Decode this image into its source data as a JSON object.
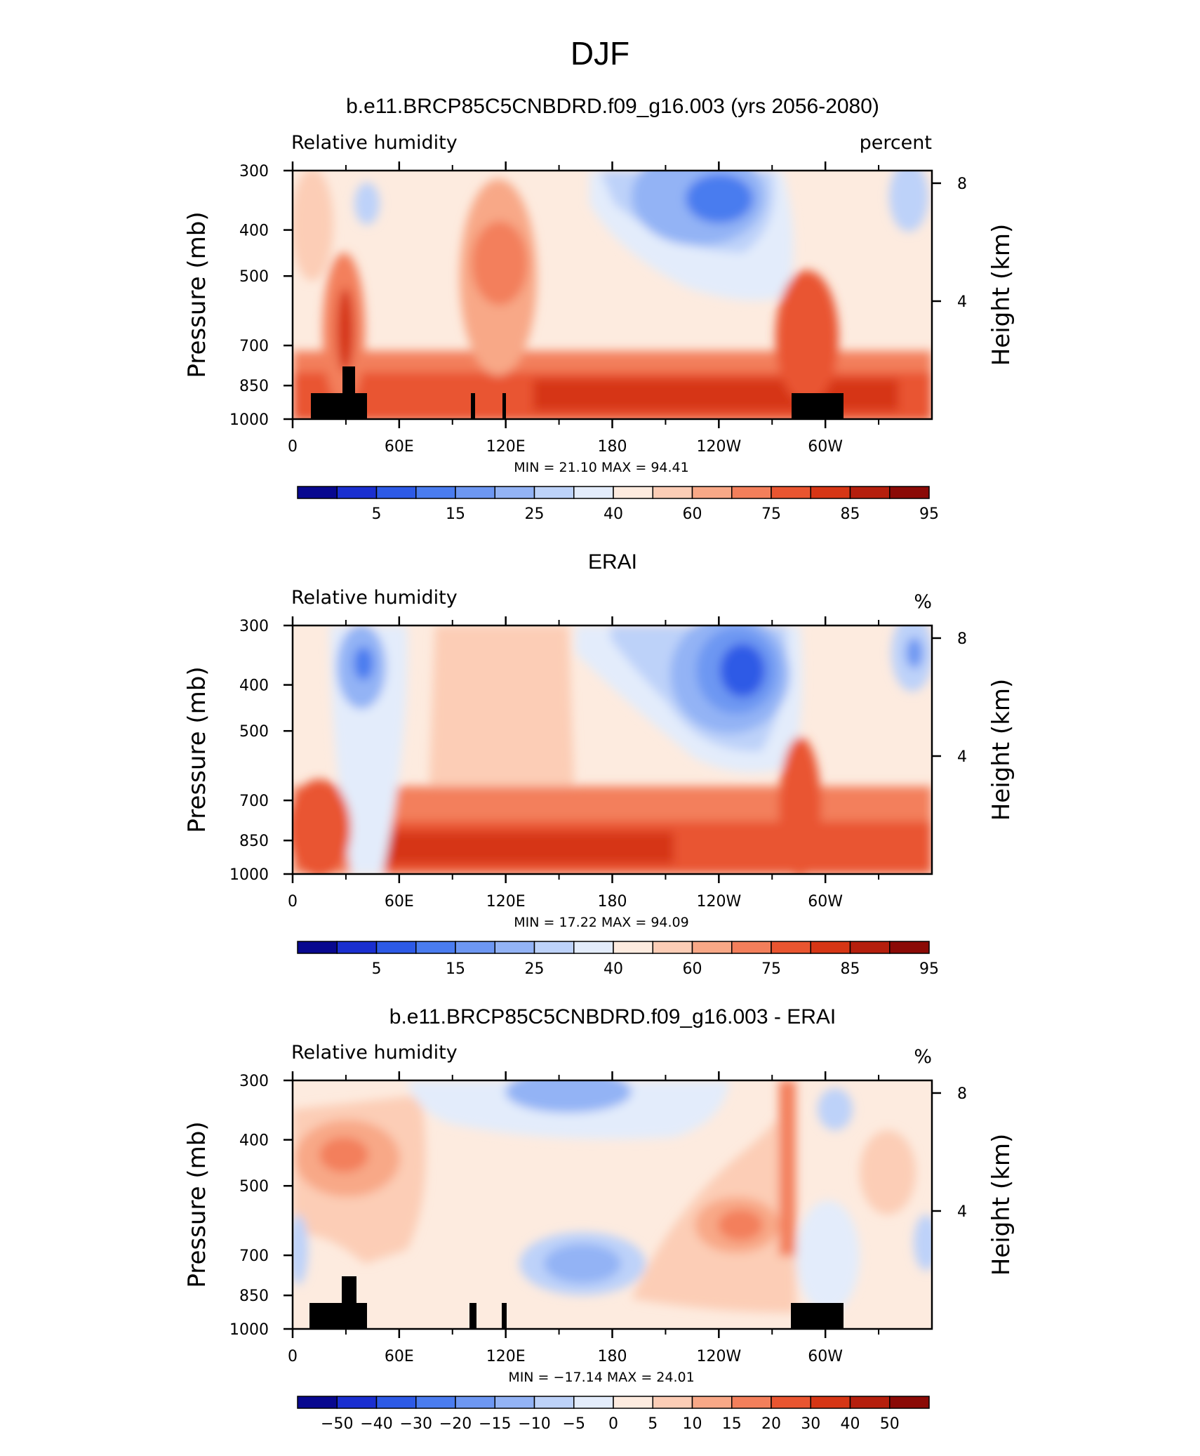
{
  "figure": {
    "title": "DJF"
  },
  "chart_data": [
    {
      "type": "heatmap",
      "title": "b.e11.BRCP85C5CNBDRD.f09_g16.003 (yrs 2056-2080)",
      "left_label": "Relative humidity",
      "right_label": "percent",
      "ylabel": "Pressure (mb)",
      "ylabel_right": "Height (km)",
      "x_ticks": [
        "0",
        "60E",
        "120E",
        "180",
        "120W",
        "60W"
      ],
      "x_tick_lon": [
        0,
        60,
        120,
        180,
        240,
        300
      ],
      "xlim": [
        0,
        360
      ],
      "y_ticks": [
        "300",
        "400",
        "500",
        "700",
        "850",
        "1000"
      ],
      "y_tick_p": [
        300,
        400,
        500,
        700,
        850,
        1000
      ],
      "ylim": [
        1000,
        300
      ],
      "y_scale": "log-pressure",
      "height_ticks": [
        "8",
        "4"
      ],
      "height_tick_km": [
        8,
        4
      ],
      "stats_text": "MIN =   21.10   MAX =   94.41",
      "min": 21.1,
      "max": 94.41,
      "colorbar_labels": [
        "5",
        "15",
        "25",
        "40",
        "60",
        "75",
        "85",
        "95"
      ],
      "colormap": "BlueWhiteOrangeRed",
      "terrain_mask": true
    },
    {
      "type": "heatmap",
      "title": "ERAI",
      "left_label": "Relative humidity",
      "right_label": "%",
      "ylabel": "Pressure (mb)",
      "ylabel_right": "Height (km)",
      "x_ticks": [
        "0",
        "60E",
        "120E",
        "180",
        "120W",
        "60W"
      ],
      "x_tick_lon": [
        0,
        60,
        120,
        180,
        240,
        300
      ],
      "xlim": [
        0,
        360
      ],
      "y_ticks": [
        "300",
        "400",
        "500",
        "700",
        "850",
        "1000"
      ],
      "y_tick_p": [
        300,
        400,
        500,
        700,
        850,
        1000
      ],
      "ylim": [
        1000,
        300
      ],
      "y_scale": "log-pressure",
      "height_ticks": [
        "8",
        "4"
      ],
      "height_tick_km": [
        8,
        4
      ],
      "stats_text": "MIN =   17.22   MAX =   94.09",
      "min": 17.22,
      "max": 94.09,
      "colorbar_labels": [
        "5",
        "15",
        "25",
        "40",
        "60",
        "75",
        "85",
        "95"
      ],
      "colormap": "BlueWhiteOrangeRed",
      "terrain_mask": false
    },
    {
      "type": "heatmap",
      "title": "b.e11.BRCP85C5CNBDRD.f09_g16.003 - ERAI",
      "left_label": "Relative humidity",
      "right_label": "%",
      "ylabel": "Pressure (mb)",
      "ylabel_right": "Height (km)",
      "x_ticks": [
        "0",
        "60E",
        "120E",
        "180",
        "120W",
        "60W"
      ],
      "x_tick_lon": [
        0,
        60,
        120,
        180,
        240,
        300
      ],
      "xlim": [
        0,
        360
      ],
      "y_ticks": [
        "300",
        "400",
        "500",
        "700",
        "850",
        "1000"
      ],
      "y_tick_p": [
        300,
        400,
        500,
        700,
        850,
        1000
      ],
      "ylim": [
        1000,
        300
      ],
      "y_scale": "log-pressure",
      "height_ticks": [
        "8",
        "4"
      ],
      "height_tick_km": [
        8,
        4
      ],
      "stats_text": "MIN = −17.14   MAX =   24.01",
      "min": -17.14,
      "max": 24.01,
      "colorbar_labels": [
        "−50",
        "−40",
        "−30",
        "−20",
        "−15",
        "−10",
        "−5",
        "0",
        "5",
        "10",
        "15",
        "20",
        "30",
        "40",
        "50"
      ],
      "colormap": "BlueWhiteOrangeRed",
      "terrain_mask": true
    }
  ],
  "colors": {
    "colormap_16": [
      "#08088f",
      "#1a2fd0",
      "#2d5ae6",
      "#4a7cef",
      "#6d97f2",
      "#93b3f5",
      "#bdd2f9",
      "#e3ecfb",
      "#fdebdf",
      "#fccdb6",
      "#f8a887",
      "#f37f5b",
      "#e95530",
      "#d63615",
      "#b51f0d",
      "#8b0a06"
    ],
    "terrain": "#000000"
  }
}
